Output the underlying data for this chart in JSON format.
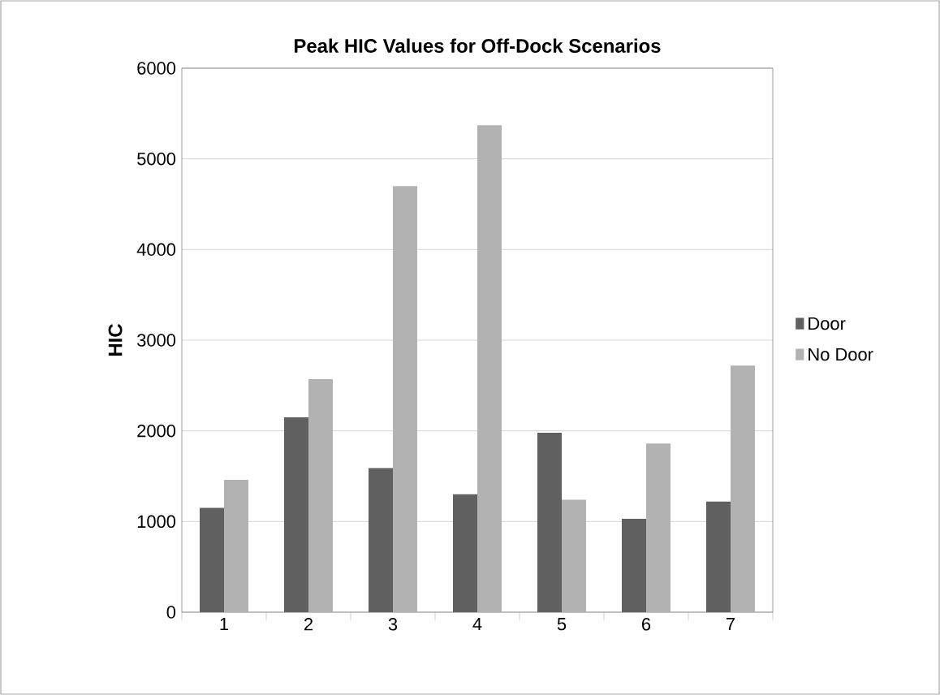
{
  "chart_data": {
    "type": "bar",
    "title": "Peak HIC Values for Off-Dock Scenarios",
    "ylabel": "HIC",
    "categories": [
      "1",
      "2",
      "3",
      "4",
      "5",
      "6",
      "7"
    ],
    "series": [
      {
        "name": "Door",
        "color": "#606060",
        "values": [
          1150,
          2150,
          1590,
          1300,
          1980,
          1030,
          1220
        ]
      },
      {
        "name": "No Door",
        "color": "#b2b2b2",
        "values": [
          1460,
          2570,
          4700,
          5370,
          1240,
          1860,
          2720
        ]
      }
    ],
    "ylim": [
      0,
      6000
    ],
    "yticks": [
      0,
      1000,
      2000,
      3000,
      4000,
      5000,
      6000
    ],
    "grid": "y",
    "legend": "right"
  }
}
